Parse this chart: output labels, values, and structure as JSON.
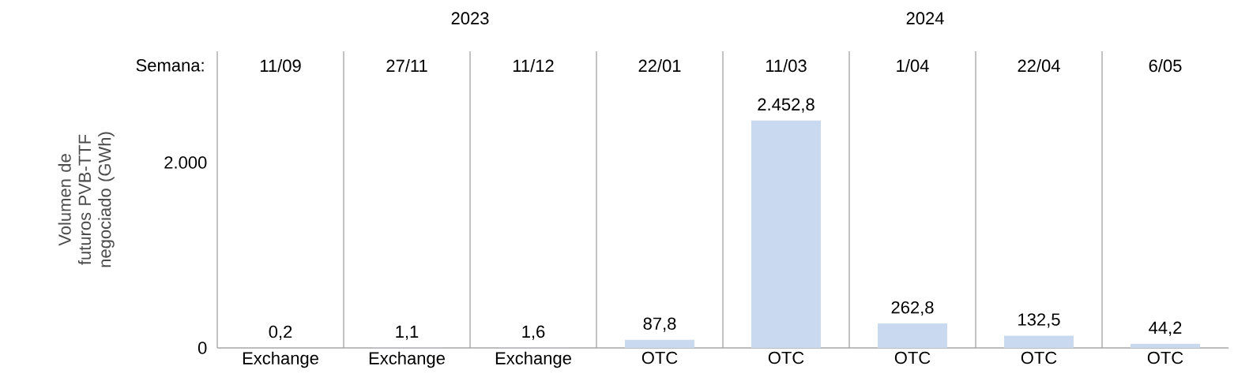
{
  "chart_data": {
    "type": "bar",
    "ylabel": "Volumen de futuros PVB-TTF negociado (GWh)",
    "categories": [
      "Exchange",
      "Exchange",
      "Exchange",
      "OTC",
      "OTC",
      "OTC",
      "OTC",
      "OTC"
    ],
    "values": [
      0.2,
      1.1,
      1.6,
      87.8,
      2452.8,
      262.8,
      132.5,
      44.2
    ],
    "value_labels": [
      "0,2",
      "1,1",
      "1,6",
      "87,8",
      "2.452,8",
      "262,8",
      "132,5",
      "44,2"
    ],
    "color": "#c9d9ef",
    "ylim": [
      0,
      3200
    ],
    "yticks": [
      0,
      {
        "value": 2000,
        "label": "2.000"
      }
    ],
    "grid": "x",
    "annotations": [
      "Semana:",
      "11/09",
      "27/11",
      "11/12",
      "22/01",
      "11/03",
      "1/04",
      "22/04",
      "6/05",
      "2023",
      "2024"
    ]
  }
}
